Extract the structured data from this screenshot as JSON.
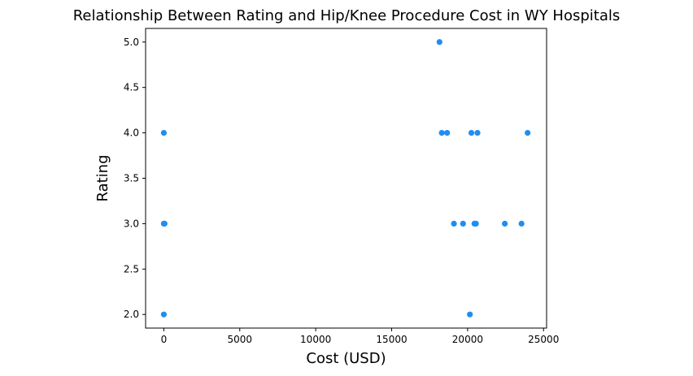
{
  "chart_data": {
    "type": "scatter",
    "title": "Relationship Between Rating and Hip/Knee Procedure Cost in WY Hospitals",
    "xlabel": "Cost (USD)",
    "ylabel": "Rating",
    "xlim": [
      -1200,
      25200
    ],
    "ylim": [
      1.85,
      5.15
    ],
    "xticks": [
      0,
      5000,
      10000,
      15000,
      20000,
      25000
    ],
    "xtick_labels": [
      "0",
      "5000",
      "10000",
      "15000",
      "20000",
      "25000"
    ],
    "yticks": [
      2.0,
      2.5,
      3.0,
      3.5,
      4.0,
      4.5,
      5.0
    ],
    "ytick_labels": [
      "2.0",
      "2.5",
      "3.0",
      "3.5",
      "4.0",
      "4.5",
      "5.0"
    ],
    "grid": false,
    "marker_color": "#1f8ef1",
    "points": [
      {
        "x": 0,
        "y": 4
      },
      {
        "x": 0,
        "y": 3
      },
      {
        "x": 50,
        "y": 3
      },
      {
        "x": 0,
        "y": 2
      },
      {
        "x": 18150,
        "y": 5
      },
      {
        "x": 18300,
        "y": 4
      },
      {
        "x": 18650,
        "y": 4
      },
      {
        "x": 19100,
        "y": 3
      },
      {
        "x": 19700,
        "y": 3
      },
      {
        "x": 20150,
        "y": 2
      },
      {
        "x": 20250,
        "y": 4
      },
      {
        "x": 20450,
        "y": 3
      },
      {
        "x": 20550,
        "y": 3
      },
      {
        "x": 20650,
        "y": 4
      },
      {
        "x": 22450,
        "y": 3
      },
      {
        "x": 23550,
        "y": 3
      },
      {
        "x": 23950,
        "y": 4
      }
    ]
  }
}
